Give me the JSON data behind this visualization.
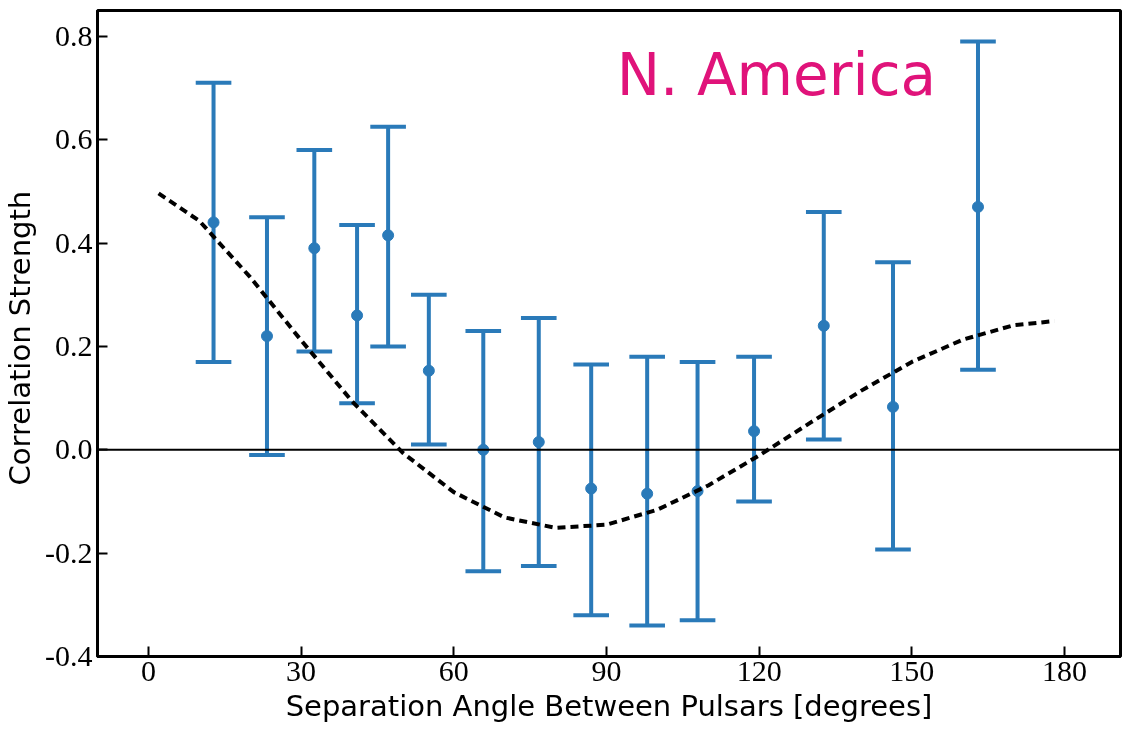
{
  "chart_data": {
    "type": "scatter",
    "xlabel": "Separation Angle Between Pulsars [degrees]",
    "ylabel": "Correlation  Strength",
    "annotations": [
      "N. America"
    ],
    "xlim": [
      -10,
      191
    ],
    "ylim": [
      -0.4,
      0.85
    ],
    "xticks": [
      0,
      30,
      60,
      90,
      120,
      150,
      180
    ],
    "yticks": [
      {
        "value": -0.4,
        "label": "-0.4"
      },
      {
        "value": -0.2,
        "label": "-0.2"
      },
      {
        "value": 0,
        "label": "0.0"
      },
      {
        "value": 0.2,
        "label": "0.2"
      },
      {
        "value": 0.4,
        "label": "0.4"
      },
      {
        "value": 0.6,
        "label": "0.6"
      },
      {
        "value": 0.8,
        "label": "0.8"
      }
    ],
    "grid": false,
    "ref_lines": [
      {
        "axis": "y",
        "value": 0,
        "color": "#000000",
        "line_style": "solid"
      }
    ],
    "series": [
      {
        "color": "#2a7ab9",
        "marker": "circle",
        "x": [
          12.8,
          23.3,
          32.6,
          41,
          47.1,
          55.1,
          65.8,
          76.7,
          87,
          98,
          107.9,
          119,
          132.7,
          146.3,
          163
        ],
        "values": [
          0.44,
          0.22,
          0.39,
          0.26,
          0.415,
          0.153,
          0.0,
          0.015,
          -0.075,
          -0.085,
          -0.08,
          0.036,
          0.24,
          0.083,
          0.47
        ],
        "errors": [
          [
            0.17,
            0.71
          ],
          [
            -0.01,
            0.45
          ],
          [
            0.19,
            0.58
          ],
          [
            0.09,
            0.435
          ],
          [
            0.2,
            0.625
          ],
          [
            0.01,
            0.3
          ],
          [
            -0.235,
            0.23
          ],
          [
            -0.225,
            0.255
          ],
          [
            -0.32,
            0.165
          ],
          [
            -0.34,
            0.18
          ],
          [
            -0.33,
            0.17
          ],
          [
            -0.1,
            0.18
          ],
          [
            0.02,
            0.46
          ],
          [
            -0.193,
            0.363
          ],
          [
            0.155,
            0.79
          ]
        ]
      },
      {
        "type": "line",
        "color": "#000000",
        "marker": "none",
        "line_style": "dashed",
        "x": [
          2,
          10,
          20,
          30,
          40,
          50,
          60,
          70,
          80,
          90,
          100,
          110,
          120,
          130,
          140,
          150,
          160,
          170,
          178
        ],
        "values": [
          0.496,
          0.443,
          0.334,
          0.212,
          0.094,
          -0.006,
          -0.082,
          -0.131,
          -0.151,
          -0.145,
          -0.116,
          -0.069,
          -0.011,
          0.052,
          0.114,
          0.17,
          0.213,
          0.241,
          0.249
        ]
      }
    ]
  }
}
